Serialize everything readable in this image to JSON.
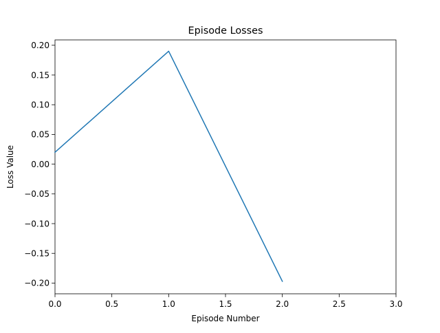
{
  "chart_data": {
    "type": "line",
    "title": "Episode Losses",
    "xlabel": "Episode Number",
    "ylabel": "Loss Value",
    "xlim": [
      0,
      3
    ],
    "ylim": [
      -0.218,
      0.209
    ],
    "xticks": [
      0.0,
      0.5,
      1.0,
      1.5,
      2.0,
      2.5,
      3.0
    ],
    "xtick_labels": [
      "0.0",
      "0.5",
      "1.0",
      "1.5",
      "2.0",
      "2.5",
      "3.0"
    ],
    "yticks": [
      0.2,
      0.15,
      0.1,
      0.05,
      0.0,
      -0.05,
      -0.1,
      -0.15,
      -0.2
    ],
    "ytick_labels": [
      "0.20",
      "0.15",
      "0.10",
      "0.05",
      "0.00",
      "−0.05",
      "−0.10",
      "−0.15",
      "−0.20"
    ],
    "grid": false,
    "series": [
      {
        "x": [
          0,
          1,
          2
        ],
        "values": [
          0.02,
          0.19,
          -0.197
        ],
        "color": "#1f77b4"
      }
    ]
  }
}
